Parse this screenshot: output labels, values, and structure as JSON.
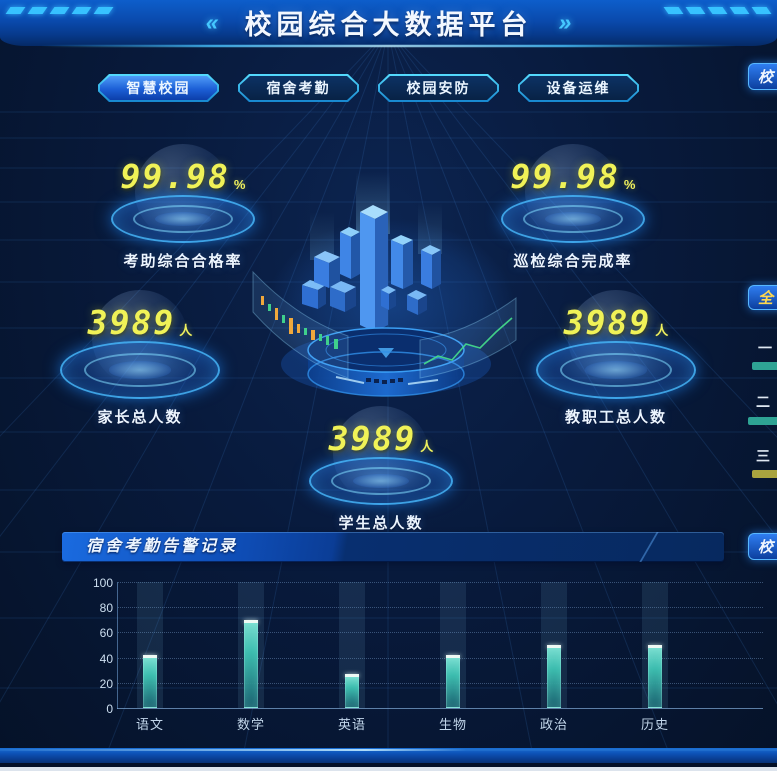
{
  "header": {
    "title": "校园综合大数据平台",
    "left_decoration": "«",
    "right_decoration": "»"
  },
  "tabs": [
    {
      "label": "智慧校园",
      "active": true
    },
    {
      "label": "宿舍考勤",
      "active": false
    },
    {
      "label": "校园安防",
      "active": false
    },
    {
      "label": "设备运维",
      "active": false
    }
  ],
  "stats": [
    {
      "value": "99.98",
      "unit": "%",
      "label": "考助综合合格率"
    },
    {
      "value": "99.98",
      "unit": "%",
      "label": "巡检综合完成率"
    },
    {
      "value": "3989",
      "unit": "人",
      "label": "家长总人数"
    },
    {
      "value": "3989",
      "unit": "人",
      "label": "教职工总人数"
    },
    {
      "value": "3989",
      "unit": "人",
      "label": "学生总人数"
    }
  ],
  "right_edge": {
    "top_tag": "校",
    "mid_tag": "全",
    "ranking": [
      {
        "label": "一",
        "bar_color": "#2ea394"
      },
      {
        "label": "二",
        "bar_color": "#2ea394"
      },
      {
        "label": "三",
        "bar_color": "#a9a43f"
      }
    ],
    "bottom_tag": "校"
  },
  "alarm_panel": {
    "title": "宿舍考勤告警记录"
  },
  "chart_data": {
    "type": "bar",
    "title": "宿舍考勤告警记录",
    "categories": [
      "语文",
      "数学",
      "英语",
      "生物",
      "政治",
      "历史"
    ],
    "values": [
      42,
      70,
      27,
      42,
      50,
      50
    ],
    "ylim": [
      0,
      100
    ],
    "yticks": [
      0,
      20,
      40,
      60,
      80,
      100
    ],
    "xlabel": "",
    "ylabel": "",
    "grid": "horizontal-dotted",
    "legend": "none",
    "bar_color": "#3bbcae",
    "bar_cap_color": "#eef9f4",
    "band_color": "rgba(120,190,220,0.12)"
  },
  "colors": {
    "accent_cyan": "#3fd2ff",
    "number_yellow": "#f0f257",
    "header_blue": "#0d5ecb",
    "background": "#081a3c"
  }
}
